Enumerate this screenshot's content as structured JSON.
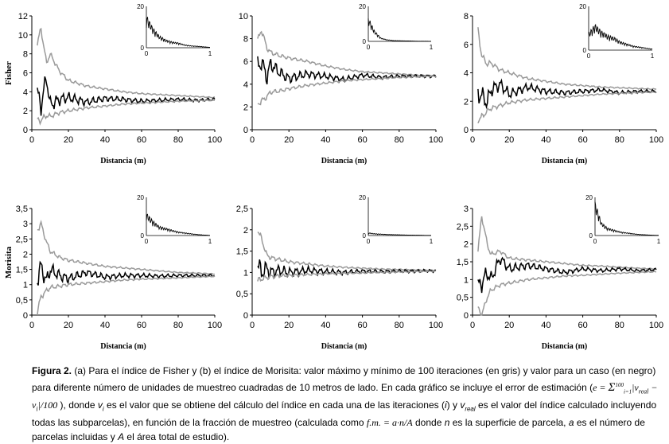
{
  "figure": {
    "row_labels": [
      "Fisher",
      "Morisita"
    ],
    "x_label": "Distancia (m)"
  },
  "chart_data": [
    {
      "type": "line",
      "row": "Fisher",
      "xlabel": "Distancia (m)",
      "x_range": [
        0,
        100
      ],
      "x_ticks": [
        "0",
        "20",
        "40",
        "60",
        "80",
        "100"
      ],
      "y_range": [
        0,
        12
      ],
      "y_ticks": [
        "0",
        "2",
        "4",
        "6",
        "8",
        "10",
        "12"
      ],
      "series": [
        {
          "color": "#9a9a9a",
          "role": "upper",
          "x": [
            3,
            5,
            8,
            10,
            15,
            20,
            30,
            40,
            50,
            60,
            70,
            80,
            90,
            100
          ],
          "values": [
            9,
            10.7,
            7,
            8,
            6.2,
            5.2,
            4.6,
            4.3,
            4,
            3.8,
            3.7,
            3.6,
            3.5,
            3.4
          ]
        },
        {
          "color": "#000000",
          "role": "single case",
          "x": [
            3,
            5,
            8,
            10,
            15,
            20,
            30,
            40,
            50,
            60,
            70,
            80,
            90,
            100
          ],
          "values": [
            3.8,
            2.5,
            5.6,
            2.6,
            3.2,
            3.4,
            2.9,
            3.3,
            3.2,
            3,
            3.1,
            3.2,
            3.1,
            3.2
          ]
        },
        {
          "color": "#9a9a9a",
          "role": "lower",
          "x": [
            3,
            5,
            8,
            10,
            15,
            20,
            30,
            40,
            50,
            60,
            70,
            80,
            90,
            100
          ],
          "values": [
            1,
            1,
            1.5,
            1.4,
            1.8,
            2,
            2.3,
            2.5,
            2.7,
            2.8,
            2.9,
            3,
            3.05,
            3.1
          ]
        }
      ],
      "inset": {
        "x_range": [
          0,
          1
        ],
        "y_range": [
          0,
          20
        ],
        "x_ticks": [
          "0",
          "1"
        ],
        "y_ticks": [
          "0",
          "20"
        ],
        "profile": [
          16,
          10,
          6,
          4,
          3,
          2.5,
          1.5,
          1,
          0.8,
          0.5,
          0.2
        ]
      }
    },
    {
      "type": "line",
      "row": "Fisher",
      "xlabel": "Distancia (m)",
      "x_range": [
        0,
        100
      ],
      "x_ticks": [
        "0",
        "20",
        "40",
        "60",
        "80",
        "100"
      ],
      "y_range": [
        0,
        10
      ],
      "y_ticks": [
        "0",
        "2",
        "4",
        "6",
        "8",
        "10"
      ],
      "series": [
        {
          "color": "#9a9a9a",
          "role": "upper",
          "x": [
            3,
            5,
            8,
            10,
            15,
            20,
            30,
            40,
            50,
            60,
            70,
            80,
            90,
            100
          ],
          "values": [
            7.8,
            8.8,
            7.2,
            6.8,
            6.5,
            6.3,
            6,
            5.6,
            5.3,
            5.1,
            5,
            4.9,
            4.8,
            4.75
          ]
        },
        {
          "color": "#000000",
          "role": "single case",
          "x": [
            3,
            5,
            8,
            10,
            15,
            20,
            30,
            40,
            50,
            60,
            70,
            80,
            90,
            100
          ],
          "values": [
            5.5,
            6,
            4.6,
            5.8,
            5,
            4.5,
            4.9,
            4.7,
            4.4,
            4.8,
            4.6,
            4.7,
            4.7,
            4.7
          ]
        },
        {
          "color": "#9a9a9a",
          "role": "lower",
          "x": [
            3,
            5,
            8,
            10,
            15,
            20,
            30,
            40,
            50,
            60,
            70,
            80,
            90,
            100
          ],
          "values": [
            2.3,
            2.5,
            2.9,
            3.3,
            3.4,
            3.6,
            3.9,
            4.1,
            4.3,
            4.4,
            4.5,
            4.6,
            4.65,
            4.7
          ]
        }
      ],
      "inset": {
        "x_range": [
          0,
          1
        ],
        "y_range": [
          0,
          20
        ],
        "x_ticks": [
          "0",
          "1"
        ],
        "y_ticks": [
          "0",
          "20"
        ],
        "profile": [
          14,
          6,
          2,
          1,
          0.5,
          0.4,
          0.3,
          0.2,
          0.1,
          0.1,
          0.05
        ]
      }
    },
    {
      "type": "line",
      "row": "Fisher",
      "xlabel": "Distancia (m)",
      "x_range": [
        0,
        100
      ],
      "x_ticks": [
        "0",
        "20",
        "40",
        "60",
        "80",
        "100"
      ],
      "y_range": [
        0,
        8
      ],
      "y_ticks": [
        "0",
        "2",
        "4",
        "6",
        "8"
      ],
      "series": [
        {
          "color": "#9a9a9a",
          "role": "upper",
          "x": [
            3,
            5,
            8,
            10,
            15,
            20,
            30,
            40,
            50,
            60,
            70,
            80,
            90,
            100
          ],
          "values": [
            7,
            5.2,
            4.6,
            4.7,
            4.2,
            4,
            3.6,
            3.4,
            3.2,
            3.1,
            3,
            2.95,
            2.9,
            2.85
          ]
        },
        {
          "color": "#000000",
          "role": "single case",
          "x": [
            3,
            5,
            8,
            10,
            15,
            20,
            30,
            40,
            50,
            60,
            70,
            80,
            90,
            100
          ],
          "values": [
            2.6,
            2.4,
            1.9,
            2.8,
            3.2,
            2.5,
            3,
            2.7,
            2.6,
            2.7,
            2.8,
            2.6,
            2.7,
            2.7
          ]
        },
        {
          "color": "#9a9a9a",
          "role": "lower",
          "x": [
            3,
            5,
            8,
            10,
            15,
            20,
            30,
            40,
            50,
            60,
            70,
            80,
            90,
            100
          ],
          "values": [
            0.7,
            0.9,
            1.3,
            1.5,
            1.7,
            1.9,
            2.1,
            2.2,
            2.3,
            2.4,
            2.5,
            2.55,
            2.6,
            2.65
          ]
        }
      ],
      "inset": {
        "x_range": [
          0,
          1
        ],
        "y_range": [
          0,
          20
        ],
        "x_ticks": [
          "0",
          "1"
        ],
        "y_ticks": [
          "0",
          "20"
        ],
        "profile": [
          8,
          12,
          9,
          7,
          6,
          4,
          3,
          2,
          1.5,
          1,
          0.5
        ]
      }
    },
    {
      "type": "line",
      "row": "Morisita",
      "xlabel": "Distancia (m)",
      "x_range": [
        0,
        100
      ],
      "x_ticks": [
        "0",
        "20",
        "40",
        "60",
        "80",
        "100"
      ],
      "y_range": [
        0,
        3.5
      ],
      "y_ticks": [
        "0",
        "0,5",
        "1",
        "1,5",
        "2",
        "2,5",
        "3",
        "3,5"
      ],
      "series": [
        {
          "color": "#9a9a9a",
          "role": "upper",
          "x": [
            3,
            5,
            8,
            10,
            15,
            20,
            30,
            40,
            50,
            60,
            70,
            80,
            90,
            100
          ],
          "values": [
            2.8,
            3,
            2.4,
            2.1,
            1.9,
            1.8,
            1.7,
            1.6,
            1.55,
            1.5,
            1.45,
            1.4,
            1.38,
            1.35
          ]
        },
        {
          "color": "#000000",
          "role": "single case",
          "x": [
            3,
            5,
            8,
            10,
            15,
            20,
            30,
            40,
            50,
            60,
            70,
            80,
            90,
            100
          ],
          "values": [
            1.2,
            1.6,
            1.1,
            1.5,
            1.3,
            1.2,
            1.4,
            1.25,
            1.3,
            1.3,
            1.28,
            1.3,
            1.3,
            1.3
          ]
        },
        {
          "color": "#9a9a9a",
          "role": "lower",
          "x": [
            3,
            5,
            8,
            10,
            15,
            20,
            30,
            40,
            50,
            60,
            70,
            80,
            90,
            100
          ],
          "values": [
            0.1,
            0.6,
            0.8,
            0.9,
            0.95,
            1,
            1.05,
            1.1,
            1.15,
            1.18,
            1.2,
            1.22,
            1.25,
            1.27
          ]
        }
      ],
      "inset": {
        "x_range": [
          0,
          1
        ],
        "y_range": [
          0,
          20
        ],
        "x_ticks": [
          "0",
          "1"
        ],
        "y_ticks": [
          "0",
          "20"
        ],
        "profile": [
          12,
          8,
          5,
          4,
          3,
          2,
          1.5,
          1,
          0.6,
          0.3,
          0.1
        ]
      }
    },
    {
      "type": "line",
      "row": "Morisita",
      "xlabel": "Distancia (m)",
      "x_range": [
        0,
        100
      ],
      "x_ticks": [
        "0",
        "20",
        "40",
        "60",
        "80",
        "100"
      ],
      "y_range": [
        0,
        2.5
      ],
      "y_ticks": [
        "0",
        "0,5",
        "1",
        "1,5",
        "2",
        "2,5"
      ],
      "series": [
        {
          "color": "#9a9a9a",
          "role": "upper",
          "x": [
            3,
            5,
            8,
            10,
            15,
            20,
            30,
            40,
            50,
            60,
            70,
            80,
            90,
            100
          ],
          "values": [
            2,
            1.8,
            1.4,
            1.35,
            1.3,
            1.25,
            1.2,
            1.15,
            1.12,
            1.1,
            1.08,
            1.07,
            1.06,
            1.05
          ]
        },
        {
          "color": "#000000",
          "role": "single case",
          "x": [
            3,
            5,
            8,
            10,
            15,
            20,
            30,
            40,
            50,
            60,
            70,
            80,
            90,
            100
          ],
          "values": [
            1.2,
            1,
            1.1,
            1,
            1.05,
            1,
            1.05,
            1.02,
            1,
            1.03,
            1.02,
            1.03,
            1.03,
            1.04
          ]
        },
        {
          "color": "#9a9a9a",
          "role": "lower",
          "x": [
            3,
            5,
            8,
            10,
            15,
            20,
            30,
            40,
            50,
            60,
            70,
            80,
            90,
            100
          ],
          "values": [
            0.8,
            0.85,
            0.88,
            0.9,
            0.92,
            0.93,
            0.95,
            0.97,
            0.98,
            0.99,
            1,
            1.01,
            1.02,
            1.03
          ]
        }
      ],
      "inset": {
        "x_range": [
          0,
          1
        ],
        "y_range": [
          0,
          20
        ],
        "x_ticks": [
          "0",
          "1"
        ],
        "y_ticks": [
          "0",
          "20"
        ],
        "profile": [
          1.5,
          1,
          0.8,
          0.6,
          0.5,
          0.4,
          0.3,
          0.2,
          0.2,
          0.1,
          0.1
        ]
      }
    },
    {
      "type": "line",
      "row": "Morisita",
      "xlabel": "Distancia (m)",
      "x_range": [
        0,
        100
      ],
      "x_ticks": [
        "0",
        "20",
        "40",
        "60",
        "80",
        "100"
      ],
      "y_range": [
        0,
        3
      ],
      "y_ticks": [
        "0",
        "0,5",
        "1",
        "1,5",
        "2",
        "2,5",
        "3"
      ],
      "series": [
        {
          "color": "#9a9a9a",
          "role": "upper",
          "x": [
            3,
            5,
            8,
            10,
            15,
            20,
            30,
            40,
            50,
            60,
            70,
            80,
            90,
            100
          ],
          "values": [
            1.8,
            2.8,
            2,
            1.7,
            1.8,
            1.6,
            1.55,
            1.5,
            1.45,
            1.4,
            1.38,
            1.35,
            1.32,
            1.3
          ]
        },
        {
          "color": "#000000",
          "role": "single case",
          "x": [
            3,
            5,
            8,
            10,
            15,
            20,
            30,
            40,
            50,
            60,
            70,
            80,
            90,
            100
          ],
          "values": [
            0.8,
            0.9,
            1.2,
            1,
            1.6,
            1.3,
            1.4,
            1.3,
            1.2,
            1.3,
            1.25,
            1.3,
            1.25,
            1.28
          ]
        },
        {
          "color": "#9a9a9a",
          "role": "lower",
          "x": [
            3,
            5,
            8,
            10,
            15,
            20,
            30,
            40,
            50,
            60,
            70,
            80,
            90,
            100
          ],
          "values": [
            0.2,
            0,
            0.5,
            0.7,
            0.85,
            0.9,
            1,
            1.05,
            1.1,
            1.12,
            1.15,
            1.18,
            1.2,
            1.22
          ]
        }
      ],
      "inset": {
        "x_range": [
          0,
          1
        ],
        "y_range": [
          0,
          20
        ],
        "x_ticks": [
          "0",
          "1"
        ],
        "y_ticks": [
          "0",
          "20"
        ],
        "profile": [
          18,
          7,
          4,
          3,
          2,
          1.5,
          1,
          0.6,
          0.4,
          0.2,
          0.1
        ]
      }
    }
  ],
  "caption": {
    "label": "Figura 2.",
    "t1": " (a) Para el índice de Fisher y (b) el índice de Morisita: valor máximo y mínimo de 100 iteraciones (en gris) y valor para un caso (en negro) para diferente número de unidades de muestreo cuadradas de 10 metros de lado. En cada gráfico se incluye el error de estimación (",
    "formula_error": "e = Σ|v_real − v_i|/100",
    "t2": " ), donde ",
    "v_i": "v_i",
    "t3": " es el valor que se obtiene del cálculo del índice en cada una de las iteraciones (",
    "i": "i",
    "t4": ") y ",
    "v_real": "v_real",
    "t5": " es el valor del índice calculado incluyendo todas las subparcelas), en función de la fracción de muestreo (calculada como ",
    "formula_fm": "f.m. = a·n/A",
    "t6": " donde ",
    "n": "n",
    "t7": " es la superficie de parcela, ",
    "a": "a",
    "t8": " es el número de parcelas incluidas y ",
    "A": "A",
    "t9": " el área total de estudio)."
  }
}
